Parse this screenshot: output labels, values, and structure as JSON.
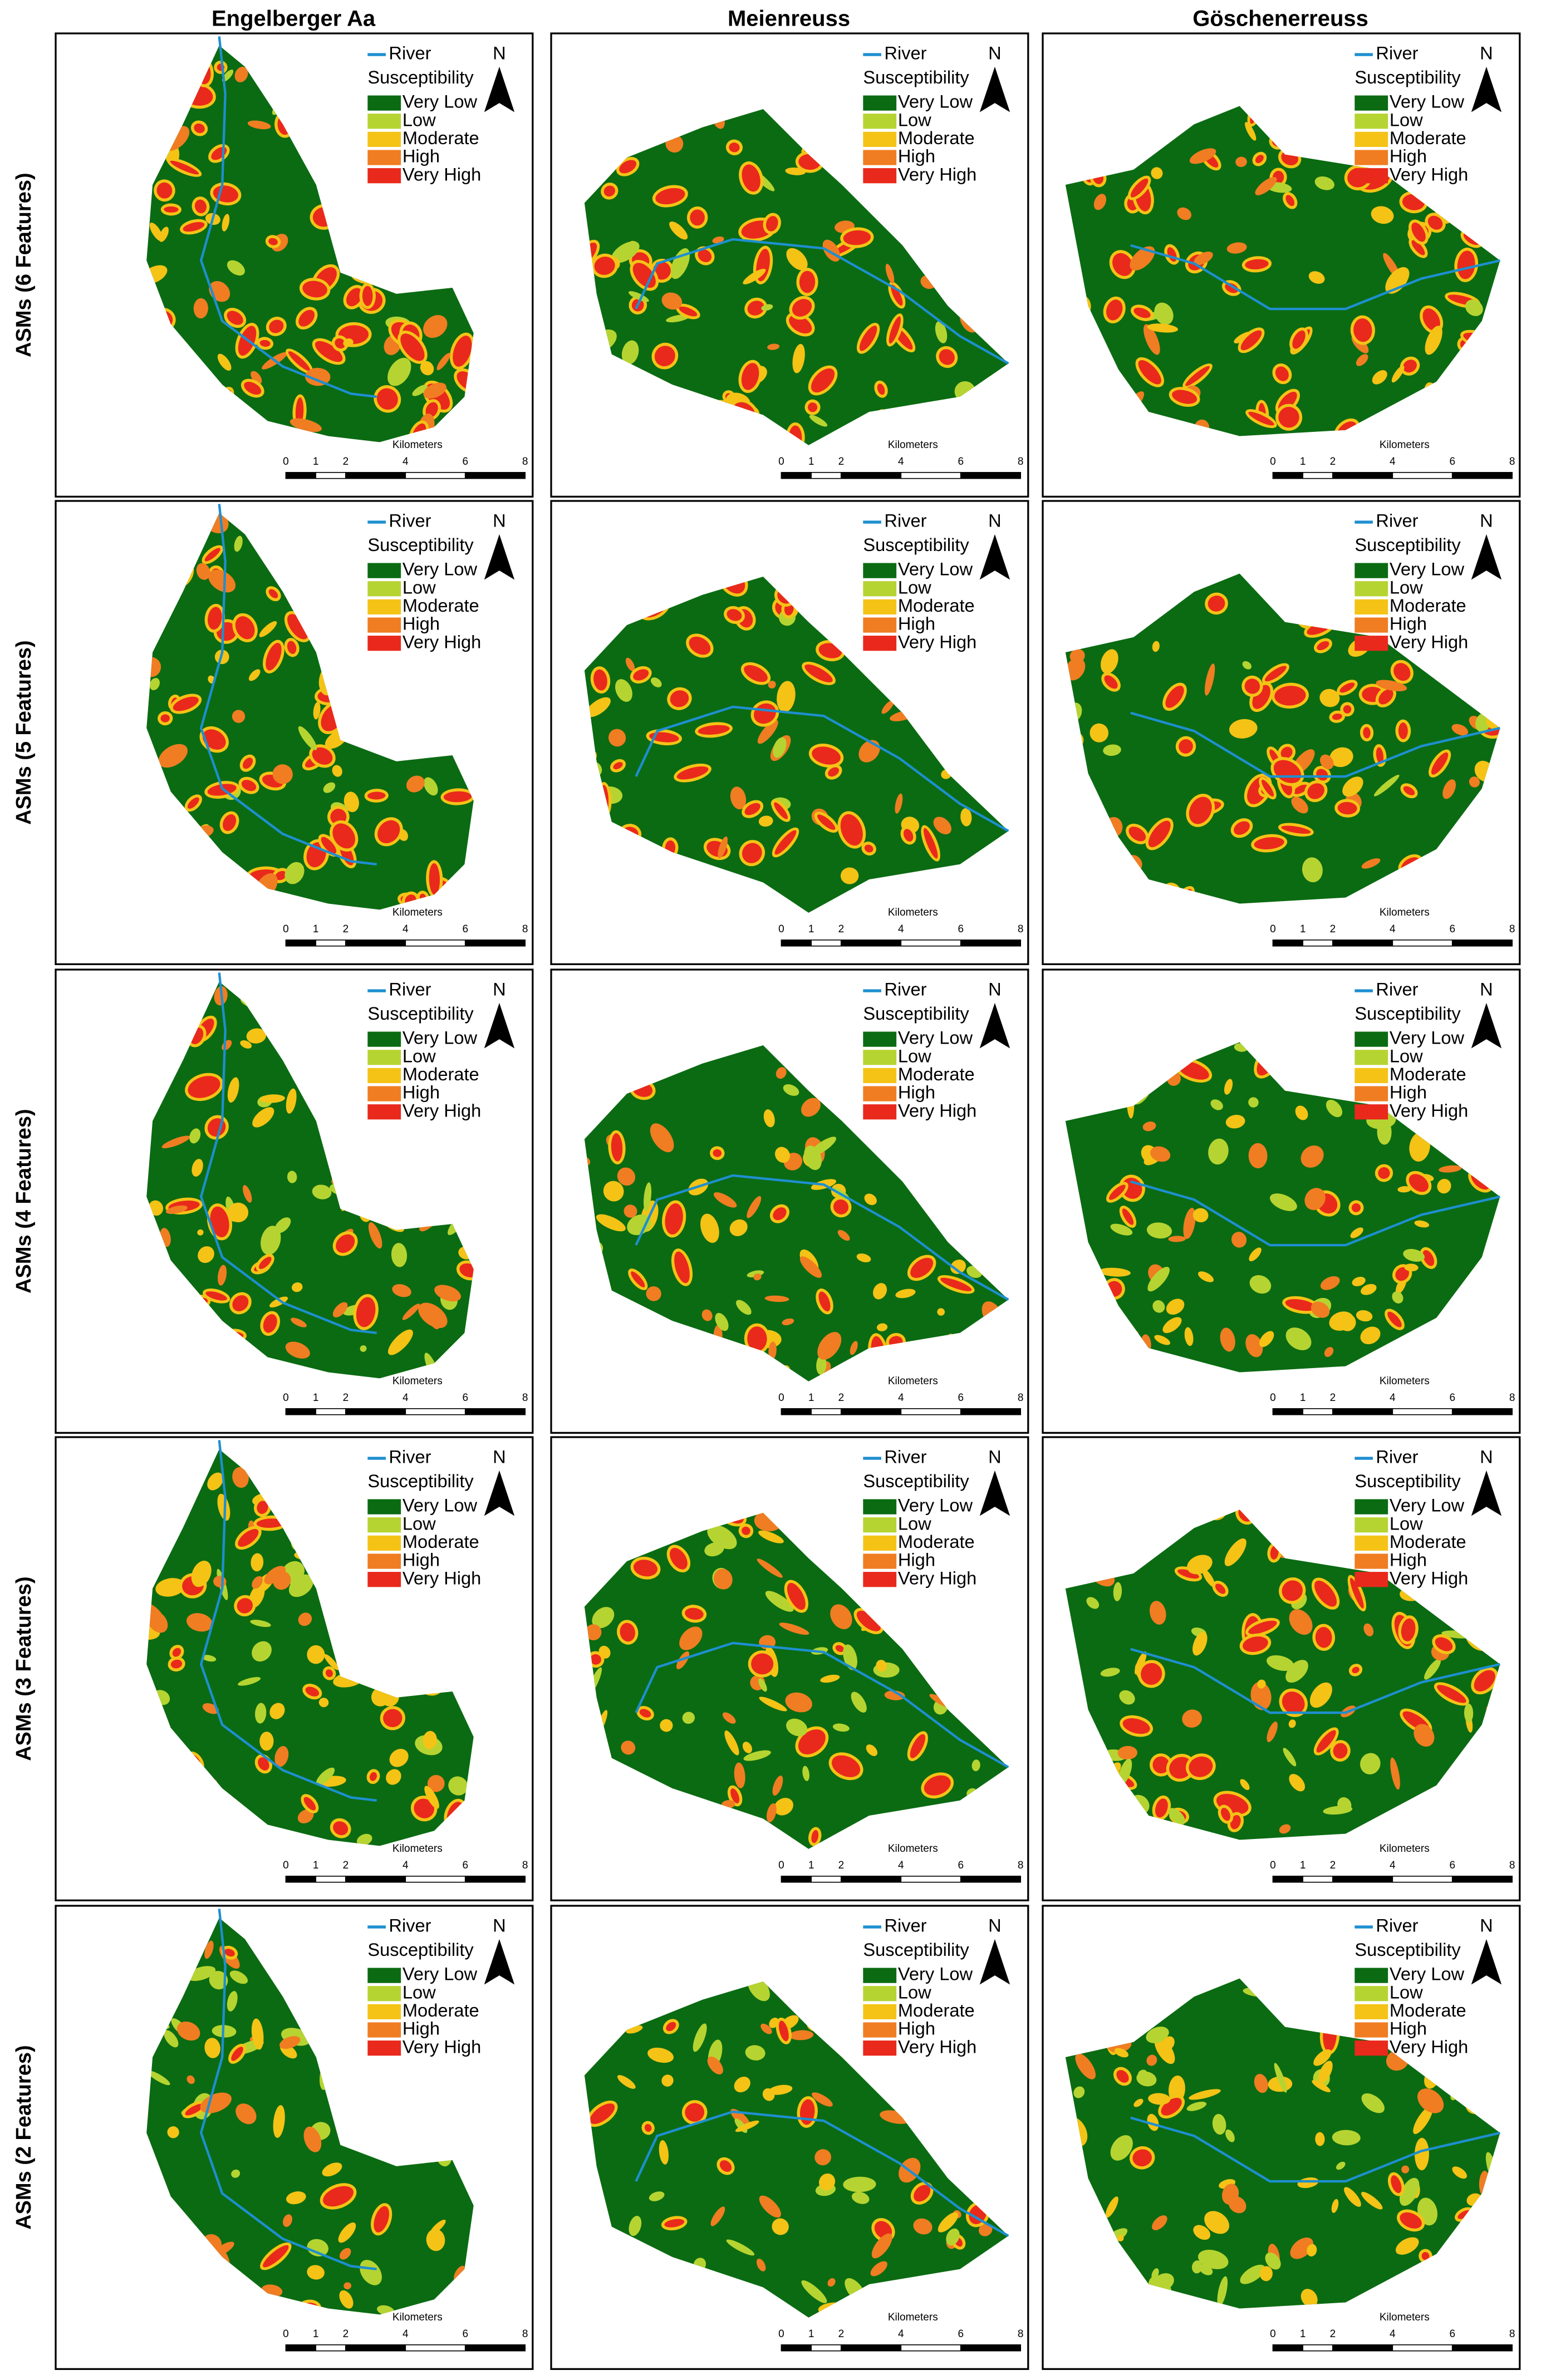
{
  "columns": [
    "Engelberger Aa",
    "Meienreuss",
    "Göschenerreuss"
  ],
  "rows": [
    "ASMs (6 Features)",
    "ASMs (5 Features)",
    "ASMs (4 Features)",
    "ASMs (3 Features)",
    "ASMs (2 Features)"
  ],
  "legend": {
    "river": "River",
    "river_color": "#1e8fd0",
    "title": "Susceptibility",
    "classes": [
      {
        "label": "Very Low",
        "color": "#0b6b12"
      },
      {
        "label": "Low",
        "color": "#b6d431"
      },
      {
        "label": "Moderate",
        "color": "#f4c316"
      },
      {
        "label": "High",
        "color": "#f07d22"
      },
      {
        "label": "Very High",
        "color": "#e9291c"
      }
    ]
  },
  "north": "N",
  "scale_bar": {
    "unit": "Kilometers",
    "ticks": [
      0,
      1,
      2,
      4,
      6,
      8
    ]
  }
}
